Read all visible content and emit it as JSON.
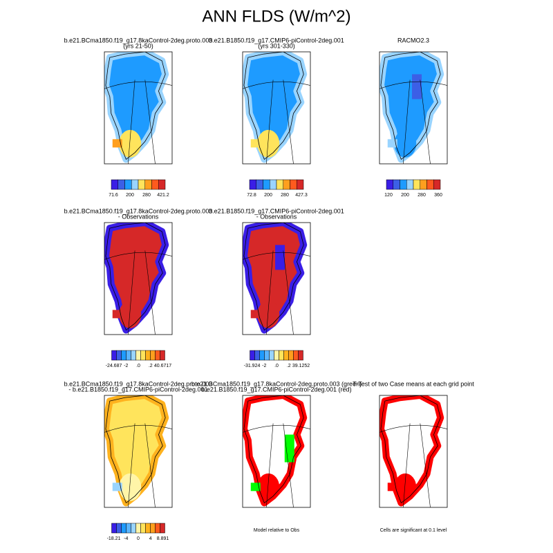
{
  "title": "ANN FLDS (W/m^2)",
  "panels": [
    {
      "title": [
        "b.e21.BCma1850.f19_g17.8kaControl-2deg.proto.003",
        "(yrs 21-50)"
      ],
      "colorbar_labels": [
        "71.6",
        "200",
        "280",
        "421.2"
      ]
    },
    {
      "title": [
        "b.e21.B1850.f19_g17.CMIP6-piControl-2deg.001",
        "(yrs 301-330)"
      ],
      "colorbar_labels": [
        "72.8",
        "200",
        "280",
        "427.3"
      ]
    },
    {
      "title": [
        "RACMO2.3"
      ],
      "colorbar_labels": [
        "120",
        "200",
        "280",
        "360"
      ]
    },
    {
      "title": [
        "b.e21.BCma1850.f19_g17.8kaControl-2deg.proto.003",
        "- Observations"
      ],
      "colorbar_labels": [
        "-24.687",
        "-2",
        ".0",
        ".2",
        "40.6717"
      ]
    },
    {
      "title": [
        "b.e21.B1850.f19_g17.CMIP6-piControl-2deg.001",
        "- Observations"
      ],
      "colorbar_labels": [
        "-31.924",
        "-2",
        ".0",
        ".2",
        "39.1252"
      ]
    },
    {
      "title": [
        "b.e21.BCma1850.f19_g17.8kaControl-2deg.proto.003",
        "- b.e21.B1850.f19_g17.CMIP6-piControl-2deg.001"
      ],
      "colorbar_labels": [
        "-18.21",
        "-4",
        "0",
        "4",
        "8.891"
      ]
    },
    {
      "title": [
        "b.e21.BCma1850.f19_g17.8kaControl-2deg.proto.003 (green)",
        "b.e21.B1850.f19_g17.CMIP6-piControl-2deg.001 (red)"
      ],
      "caption": "Model relative to Obs"
    },
    {
      "title": [
        "T-Test of two Case means at each grid point"
      ],
      "caption": "Cells are significant at 0.1 level"
    }
  ]
}
